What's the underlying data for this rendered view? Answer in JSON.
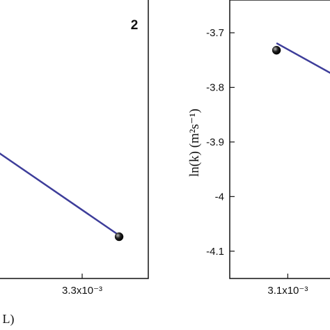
{
  "chart_data": [
    {
      "type": "scatter",
      "panel_label": "2",
      "x_label": "L)",
      "xlim": [
        0.00318,
        0.003377
      ],
      "xticks": [
        {
          "value": 0.0033,
          "label": "3.3x10⁻³"
        }
      ],
      "ylim": [
        -4.3,
        -3.5
      ],
      "x": [
        0.003343
      ],
      "values": [
        -4.18
      ],
      "color": "#111111",
      "fit": {
        "x": [
          0.00318,
          0.003343
        ],
        "values": [
          -3.9,
          -4.176
        ],
        "color": "#3d3d9a"
      }
    },
    {
      "type": "scatter",
      "y_label": "ln(k) (m²s⁻¹)",
      "xlim": [
        0.003023,
        0.003217
      ],
      "xticks": [
        {
          "value": 0.0031,
          "label": "3.1x10⁻³"
        }
      ],
      "ylim": [
        -4.15,
        -3.64
      ],
      "yticks": [
        -3.7,
        -3.8,
        -3.9,
        -4.0,
        -4.1
      ],
      "x": [
        0.003085
      ],
      "values": [
        -3.732
      ],
      "color": "#111111",
      "fit": {
        "x": [
          0.003085,
          0.003157
        ],
        "values": [
          -3.719,
          -3.774
        ],
        "color": "#3d3d9a"
      }
    }
  ]
}
